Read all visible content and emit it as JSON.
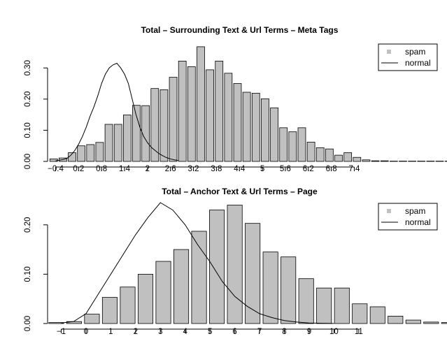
{
  "chart_data": [
    {
      "type": "bar",
      "title": "Total – Surrounding Text & Url Terms – Meta Tags",
      "xlabel": "",
      "ylabel": "",
      "ylim": [
        0,
        0.37
      ],
      "xlim": [
        -0.61,
        9.2
      ],
      "y_ticks": [
        "0.00",
        "0.10",
        "0.20",
        "0.30"
      ],
      "y_tick_values": [
        0,
        0.1,
        0.2,
        0.3
      ],
      "x_ticks": [
        "−0.4",
        "0.2",
        "0.8",
        "1.4",
        "2",
        "2.6",
        "3.2",
        "3.8",
        "4.4",
        "5",
        "5.6",
        "6.2",
        "6.8",
        "7.4"
      ],
      "x_tick_values": [
        -0.4,
        0.2,
        0.8,
        1.4,
        2.0,
        2.6,
        3.2,
        3.8,
        4.4,
        5.0,
        5.6,
        6.2,
        6.8,
        7.4
      ],
      "bar_start": -0.55,
      "bar_width": 0.2,
      "bar_gap_ratio": 0.2,
      "series": [
        {
          "name": "spam",
          "style": "bar",
          "color": "#c0c0c0",
          "values": [
            0.008,
            0.011,
            0.028,
            0.05,
            0.054,
            0.061,
            0.119,
            0.119,
            0.149,
            0.18,
            0.179,
            0.234,
            0.23,
            0.27,
            0.322,
            0.304,
            0.368,
            0.294,
            0.322,
            0.283,
            0.25,
            0.222,
            0.219,
            0.201,
            0.172,
            0.108,
            0.095,
            0.108,
            0.062,
            0.044,
            0.04,
            0.02,
            0.028,
            0.013,
            0.005,
            0.002,
            0.002,
            0.001,
            0.001,
            0.001,
            0.001,
            0.001,
            0.001,
            0.001,
            0.001,
            0.001,
            0.001
          ]
        },
        {
          "name": "normal",
          "style": "line",
          "color": "#000000",
          "x": [
            -0.4,
            -0.3,
            -0.2,
            -0.1,
            0.0,
            0.1,
            0.2,
            0.3,
            0.4,
            0.5,
            0.6,
            0.7,
            0.8,
            0.9,
            1.0,
            1.1,
            1.2,
            1.3,
            1.4,
            1.5,
            1.6,
            1.7,
            1.8,
            1.9,
            2.0,
            2.1,
            2.2,
            2.3,
            2.4,
            2.5,
            2.6,
            2.7,
            2.8
          ],
          "y": [
            0.002,
            0.004,
            0.006,
            0.01,
            0.02,
            0.035,
            0.055,
            0.08,
            0.11,
            0.145,
            0.175,
            0.21,
            0.25,
            0.28,
            0.3,
            0.31,
            0.315,
            0.3,
            0.28,
            0.25,
            0.2,
            0.15,
            0.11,
            0.08,
            0.06,
            0.045,
            0.035,
            0.025,
            0.018,
            0.012,
            0.008,
            0.005,
            0.003
          ]
        }
      ],
      "legend": {
        "position": "top-right",
        "entries": [
          "spam",
          "normal"
        ]
      }
    },
    {
      "type": "bar",
      "title": "Total – Anchor Text & Url Terms – Page",
      "xlabel": "",
      "ylabel": "",
      "ylim": [
        0,
        0.245
      ],
      "xlim": [
        -1.55,
        13.6
      ],
      "y_ticks": [
        "0.00",
        "0.10",
        "0.20"
      ],
      "y_tick_values": [
        0,
        0.1,
        0.2
      ],
      "x_ticks": [
        "−1",
        "0",
        "1",
        "2",
        "3",
        "4",
        "5",
        "6",
        "7",
        "8",
        "9",
        "10",
        "11"
      ],
      "x_tick_values": [
        -1,
        0,
        1,
        2,
        3,
        4,
        5,
        6,
        7,
        8,
        9,
        10,
        11
      ],
      "bar_start": -1.5,
      "bar_width": 0.6,
      "bar_gap_ratio": 0.2,
      "series": [
        {
          "name": "spam",
          "style": "bar",
          "color": "#c0c0c0",
          "values": [
            0.002,
            0.004,
            0.019,
            0.053,
            0.074,
            0.1,
            0.126,
            0.15,
            0.187,
            0.23,
            0.24,
            0.203,
            0.145,
            0.135,
            0.091,
            0.072,
            0.072,
            0.04,
            0.034,
            0.015,
            0.007,
            0.003,
            0.002,
            0.001,
            0.001
          ]
        },
        {
          "name": "normal",
          "style": "line",
          "color": "#000000",
          "x": [
            -1.0,
            -0.5,
            0.0,
            0.5,
            1.0,
            1.5,
            2.0,
            2.5,
            3.0,
            3.5,
            4.0,
            4.5,
            5.0,
            5.5,
            6.0,
            6.5,
            7.0,
            7.5,
            8.0,
            8.5,
            9.0,
            9.5,
            10.0
          ],
          "y": [
            0.001,
            0.004,
            0.02,
            0.06,
            0.1,
            0.14,
            0.18,
            0.215,
            0.245,
            0.23,
            0.2,
            0.16,
            0.125,
            0.085,
            0.055,
            0.035,
            0.02,
            0.012,
            0.006,
            0.003,
            0.001,
            0.0005,
            0.0002
          ]
        }
      ],
      "legend": {
        "position": "top-right",
        "entries": [
          "spam",
          "normal"
        ]
      }
    }
  ]
}
